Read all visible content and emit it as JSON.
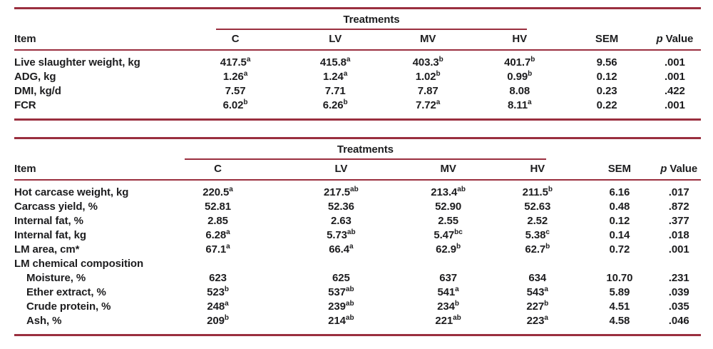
{
  "accent_color": "#9a2f3f",
  "text_color": "#1d1d1f",
  "tables": [
    {
      "name": "performance-table",
      "spanner": "Treatments",
      "item_header": "Item",
      "columns": [
        "C",
        "LV",
        "MV",
        "HV",
        "SEM"
      ],
      "p_header": {
        "italic": "p",
        "rest": "Value"
      },
      "rows": [
        {
          "label": "Live slaughter weight, kg",
          "indent": false,
          "cells": [
            {
              "v": "417.5",
              "s": "a"
            },
            {
              "v": "415.8",
              "s": "a"
            },
            {
              "v": "403.3",
              "s": "b"
            },
            {
              "v": "401.7",
              "s": "b"
            },
            {
              "v": "9.56"
            },
            {
              "v": ".001"
            }
          ]
        },
        {
          "label": "ADG, kg",
          "indent": false,
          "cells": [
            {
              "v": "1.26",
              "s": "a"
            },
            {
              "v": "1.24",
              "s": "a"
            },
            {
              "v": "1.02",
              "s": "b"
            },
            {
              "v": "0.99",
              "s": "b"
            },
            {
              "v": "0.12"
            },
            {
              "v": ".001"
            }
          ]
        },
        {
          "label": "DMI, kg/d",
          "indent": false,
          "cells": [
            {
              "v": "7.57"
            },
            {
              "v": "7.71"
            },
            {
              "v": "7.87"
            },
            {
              "v": "8.08"
            },
            {
              "v": "0.23"
            },
            {
              "v": ".422"
            }
          ]
        },
        {
          "label": "FCR",
          "indent": false,
          "cells": [
            {
              "v": "6.02",
              "s": "b"
            },
            {
              "v": "6.26",
              "s": "b"
            },
            {
              "v": "7.72",
              "s": "a"
            },
            {
              "v": "8.11",
              "s": "a"
            },
            {
              "v": "0.22"
            },
            {
              "v": ".001"
            }
          ]
        }
      ]
    },
    {
      "name": "carcass-table",
      "spanner": "Treatments",
      "item_header": "Item",
      "columns": [
        "C",
        "LV",
        "MV",
        "HV",
        "SEM"
      ],
      "p_header": {
        "italic": "p",
        "rest": "Value"
      },
      "rows": [
        {
          "label": "Hot carcase weight, kg",
          "indent": false,
          "cells": [
            {
              "v": "220.5",
              "s": "a"
            },
            {
              "v": "217.5",
              "s": "ab"
            },
            {
              "v": "213.4",
              "s": "ab"
            },
            {
              "v": "211.5",
              "s": "b"
            },
            {
              "v": "6.16"
            },
            {
              "v": ".017"
            }
          ]
        },
        {
          "label": "Carcass yield, %",
          "indent": false,
          "cells": [
            {
              "v": "52.81"
            },
            {
              "v": "52.36"
            },
            {
              "v": "52.90"
            },
            {
              "v": "52.63"
            },
            {
              "v": "0.48"
            },
            {
              "v": ".872"
            }
          ]
        },
        {
          "label": "Internal fat, %",
          "indent": false,
          "cells": [
            {
              "v": "2.85"
            },
            {
              "v": "2.63"
            },
            {
              "v": "2.55"
            },
            {
              "v": "2.52"
            },
            {
              "v": "0.12"
            },
            {
              "v": ".377"
            }
          ]
        },
        {
          "label": "Internal fat, kg",
          "indent": false,
          "cells": [
            {
              "v": "6.28",
              "s": "a"
            },
            {
              "v": "5.73",
              "s": "ab"
            },
            {
              "v": "5.47",
              "s": "bc"
            },
            {
              "v": "5.38",
              "s": "c"
            },
            {
              "v": "0.14"
            },
            {
              "v": ".018"
            }
          ]
        },
        {
          "label": "LM area, cm*",
          "indent": false,
          "cells": [
            {
              "v": "67.1",
              "s": "a"
            },
            {
              "v": "66.4",
              "s": "a"
            },
            {
              "v": "62.9",
              "s": "b"
            },
            {
              "v": "62.7",
              "s": "b"
            },
            {
              "v": "0.72"
            },
            {
              "v": ".001"
            }
          ]
        },
        {
          "label": "LM chemical composition",
          "indent": false,
          "cells": []
        },
        {
          "label": "Moisture, %",
          "indent": true,
          "cells": [
            {
              "v": "623"
            },
            {
              "v": "625"
            },
            {
              "v": "637"
            },
            {
              "v": "634"
            },
            {
              "v": "10.70"
            },
            {
              "v": ".231"
            }
          ]
        },
        {
          "label": "Ether extract, %",
          "indent": true,
          "cells": [
            {
              "v": "523",
              "s": "b"
            },
            {
              "v": "537",
              "s": "ab"
            },
            {
              "v": "541",
              "s": "a"
            },
            {
              "v": "543",
              "s": "a"
            },
            {
              "v": "5.89"
            },
            {
              "v": ".039"
            }
          ]
        },
        {
          "label": "Crude protein, %",
          "indent": true,
          "cells": [
            {
              "v": "248",
              "s": "a"
            },
            {
              "v": "239",
              "s": "ab"
            },
            {
              "v": "234",
              "s": "b"
            },
            {
              "v": "227",
              "s": "b"
            },
            {
              "v": "4.51"
            },
            {
              "v": ".035"
            }
          ]
        },
        {
          "label": "Ash, %",
          "indent": true,
          "cells": [
            {
              "v": "209",
              "s": "b"
            },
            {
              "v": "214",
              "s": "ab"
            },
            {
              "v": "221",
              "s": "ab"
            },
            {
              "v": "223",
              "s": "a"
            },
            {
              "v": "4.58"
            },
            {
              "v": ".046"
            }
          ]
        }
      ]
    }
  ]
}
